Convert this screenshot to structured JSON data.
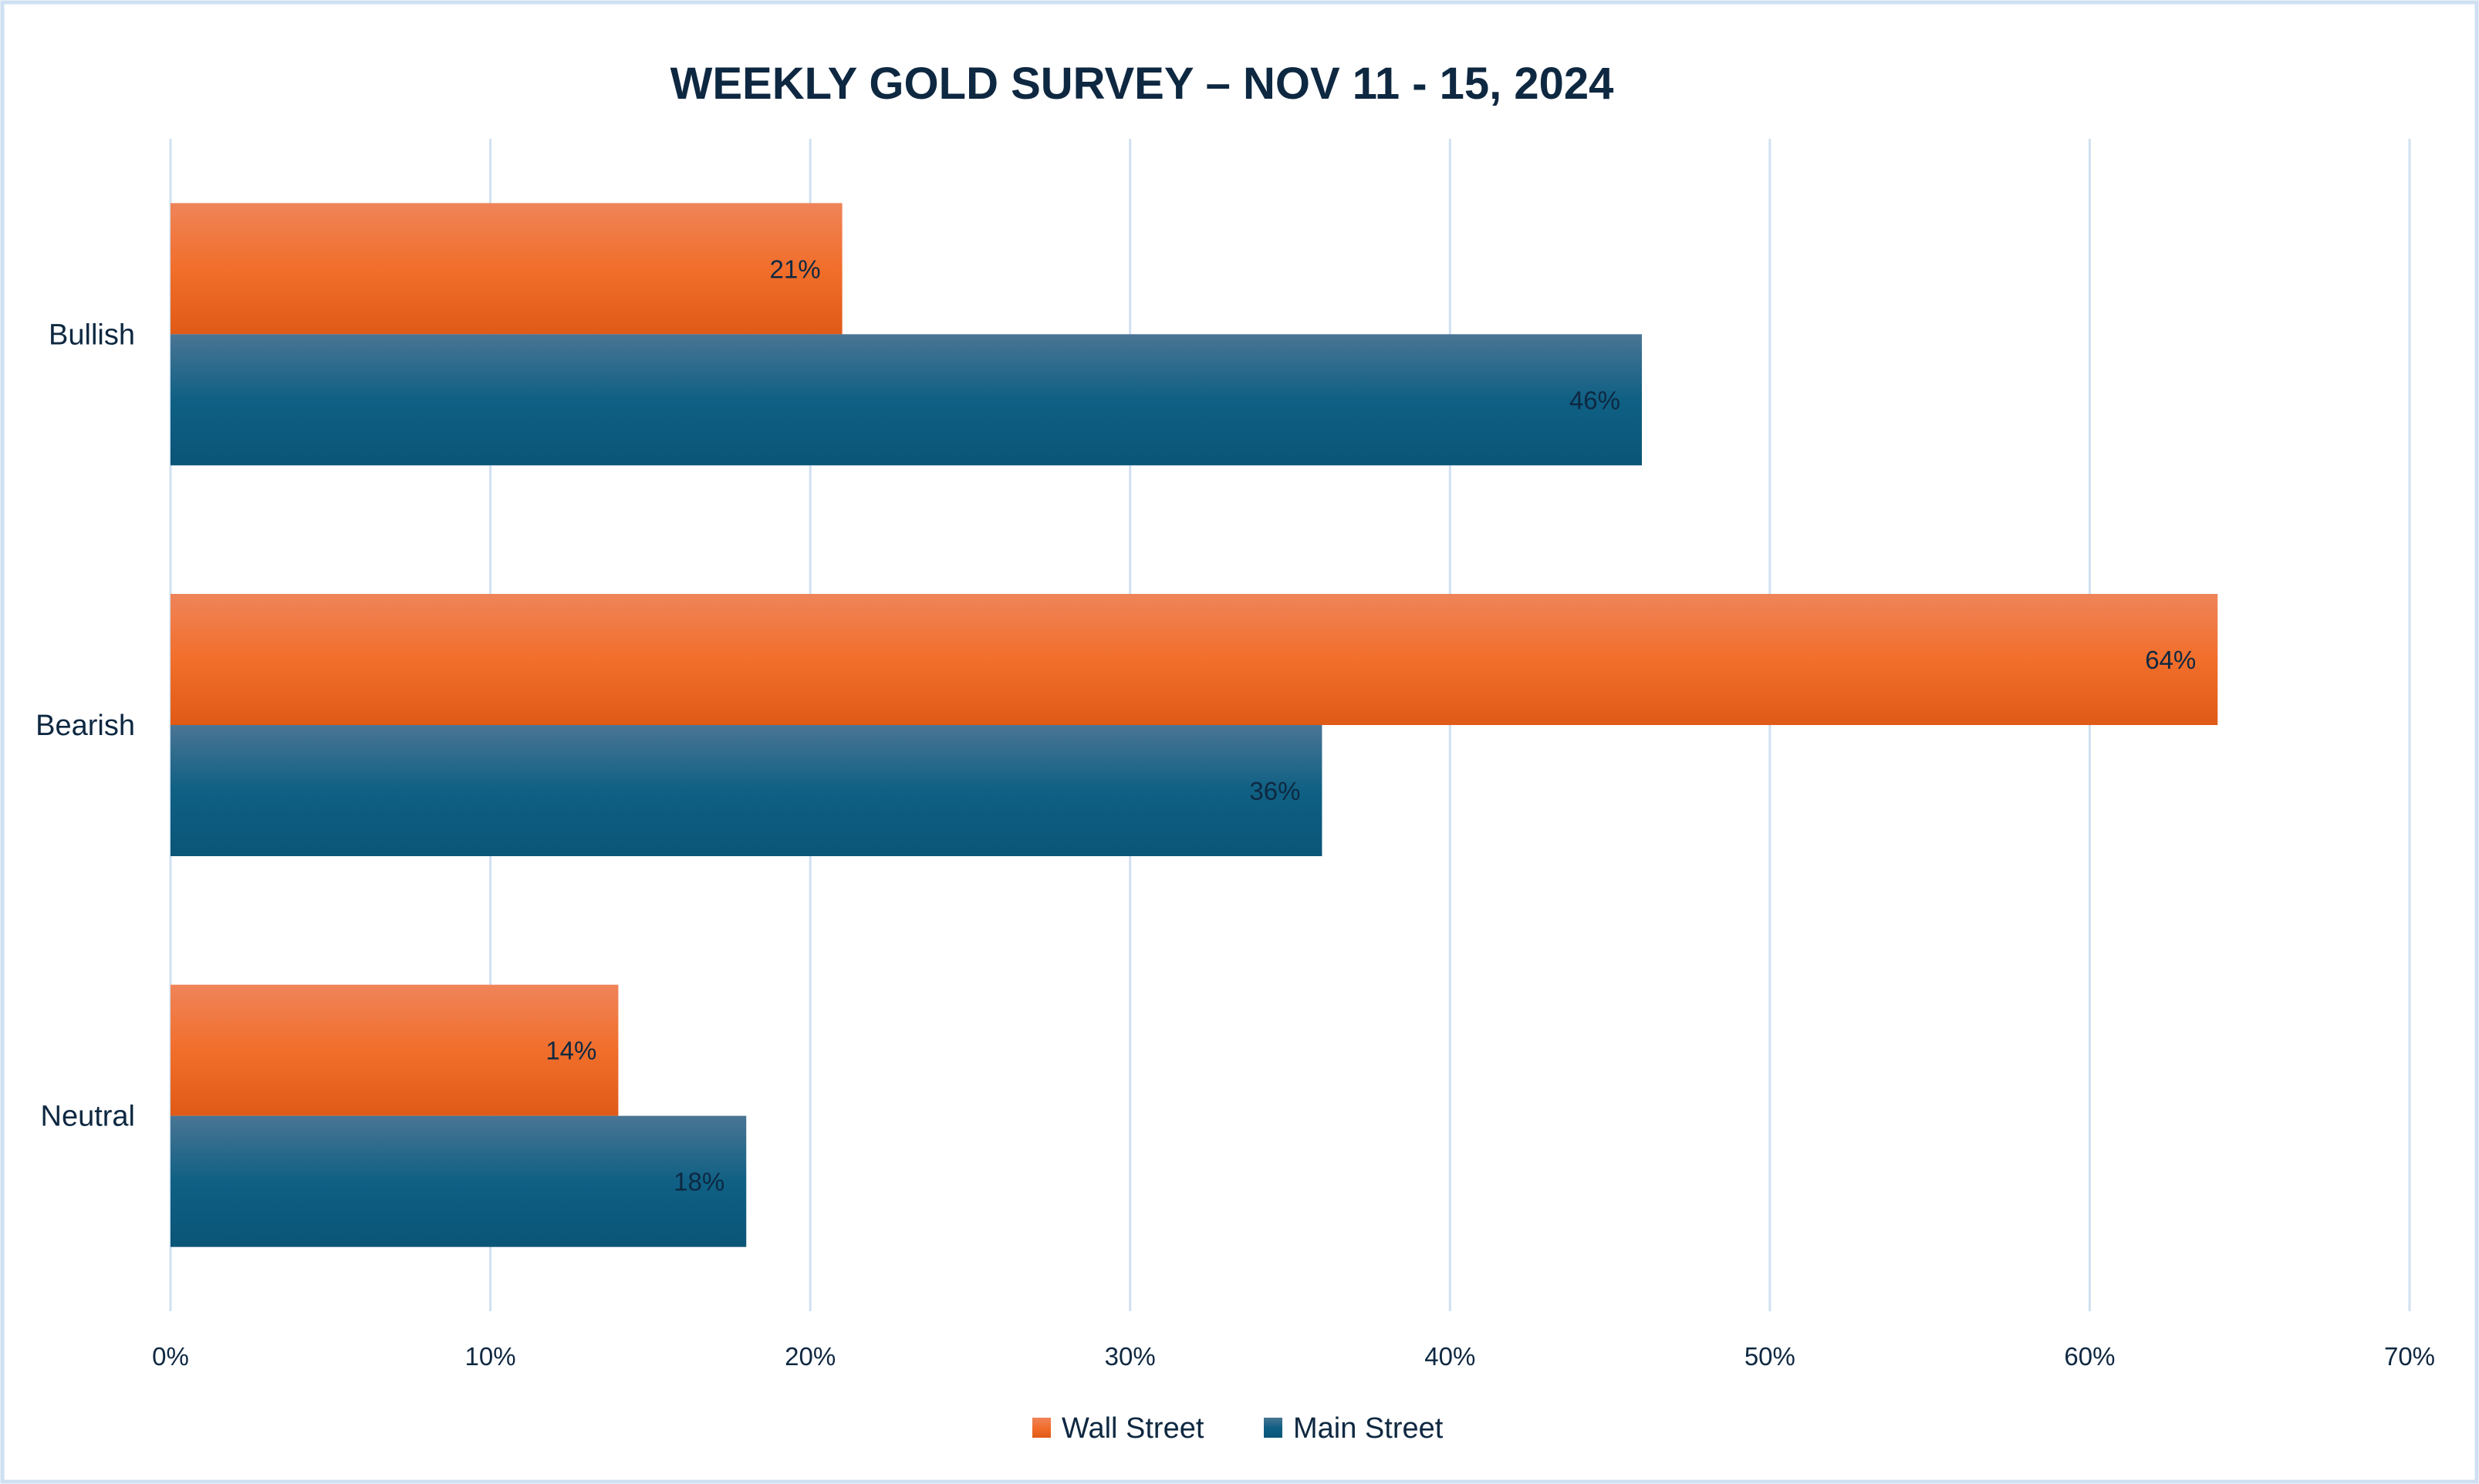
{
  "chart_data": {
    "type": "bar",
    "orientation": "horizontal",
    "title": "WEEKLY GOLD SURVEY – NOV 11 - 15, 2024",
    "categories": [
      "Bullish",
      "Bearish",
      "Neutral"
    ],
    "series": [
      {
        "name": "Wall Street",
        "values": [
          21,
          64,
          14
        ],
        "labels": [
          "21%",
          "64%",
          "14%"
        ],
        "color": "#f07030"
      },
      {
        "name": "Main Street",
        "values": [
          46,
          36,
          18
        ],
        "labels": [
          "46%",
          "36%",
          "18%"
        ],
        "color": "#0e5f84"
      }
    ],
    "xlim": [
      0,
      70
    ],
    "xticks": [
      "0%",
      "10%",
      "20%",
      "30%",
      "40%",
      "50%",
      "60%",
      "70%"
    ],
    "grid": true,
    "legend": "bottom",
    "unit": "%"
  }
}
